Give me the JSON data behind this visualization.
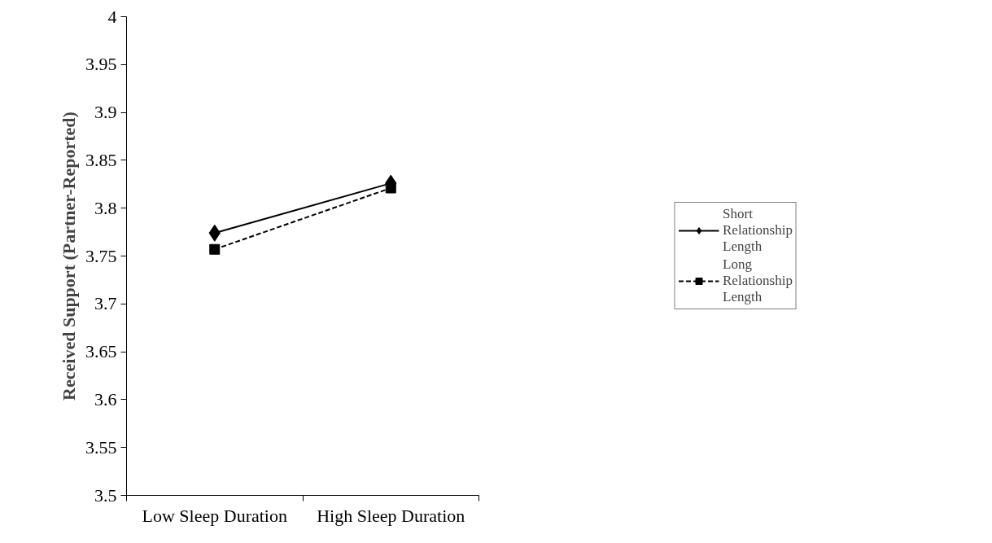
{
  "chart_data": {
    "type": "line",
    "ylabel": "Received Support (Partner-Reported)",
    "categories": [
      "Low Sleep Duration",
      "High Sleep Duration"
    ],
    "series": [
      {
        "name": "Short Relationship Length",
        "color": "#000000",
        "values": [
          3.774,
          3.826
        ],
        "marker": "diamond",
        "line_style": "solid"
      },
      {
        "name": "Long Relationship Length",
        "color": "#000000",
        "values": [
          3.757,
          3.821
        ],
        "marker": "square",
        "line_style": "dashed"
      }
    ],
    "ylim": [
      3.5,
      4
    ],
    "yticks": [
      3.5,
      3.55,
      3.6,
      3.65,
      3.7,
      3.75,
      3.8,
      3.85,
      3.9,
      3.95,
      4
    ],
    "grid": false,
    "legend": "right"
  }
}
